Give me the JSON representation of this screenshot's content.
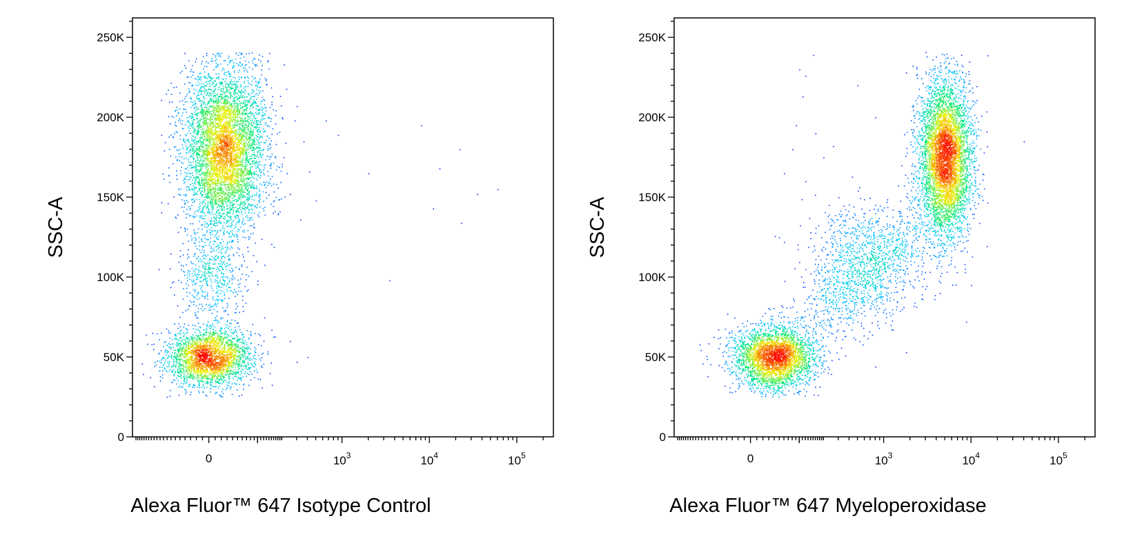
{
  "chart_data": [
    {
      "type": "scatter",
      "xlabel": "Alexa Fluor™ 647 Isotype Control",
      "ylabel": "SSC-A",
      "xscale": "biexponential",
      "ylim": [
        0,
        262144
      ],
      "y_ticks": [
        {
          "value": 0,
          "label": "0"
        },
        {
          "value": 50000,
          "label": "50K"
        },
        {
          "value": 100000,
          "label": "100K"
        },
        {
          "value": 150000,
          "label": "150K"
        },
        {
          "value": 200000,
          "label": "200K"
        },
        {
          "value": 250000,
          "label": "250K"
        }
      ],
      "x_ticks": [
        {
          "value": 0,
          "base": "0",
          "exp": ""
        },
        {
          "value": 1000,
          "base": "10",
          "exp": "3"
        },
        {
          "value": 10000,
          "base": "10",
          "exp": "4"
        },
        {
          "value": 100000,
          "base": "10",
          "exp": "5"
        }
      ],
      "color_scale": [
        "#0000ff",
        "#00c8ff",
        "#00ff80",
        "#ffff00",
        "#ff0000"
      ],
      "clusters": [
        {
          "x_center": 0,
          "y_center": 50000,
          "x_spread": 35,
          "y_spread": 9000,
          "count": 2600,
          "peak_density": "high"
        },
        {
          "x_center": 25,
          "y_center": 180000,
          "x_spread": 40,
          "y_spread": 26000,
          "count": 5200,
          "peak_density": "medium"
        },
        {
          "x_center": 5,
          "y_center": 100000,
          "x_spread": 30,
          "y_spread": 15000,
          "count": 500,
          "peak_density": "low"
        }
      ],
      "outliers": [
        {
          "x": 200,
          "y": 200000
        },
        {
          "x": 300,
          "y": 207000
        },
        {
          "x": 650,
          "y": 198000
        },
        {
          "x": 900,
          "y": 189000
        },
        {
          "x": 2000,
          "y": 165000
        },
        {
          "x": 8000,
          "y": 195000
        },
        {
          "x": 13000,
          "y": 168000
        },
        {
          "x": 22000,
          "y": 180000
        },
        {
          "x": 35000,
          "y": 152000
        },
        {
          "x": 60000,
          "y": 155000
        },
        {
          "x": 11000,
          "y": 143000
        },
        {
          "x": 23000,
          "y": 134000
        },
        {
          "x": 3500,
          "y": 98000
        },
        {
          "x": 500,
          "y": 148000
        },
        {
          "x": 330,
          "y": 136000
        },
        {
          "x": 250,
          "y": 60000
        },
        {
          "x": 300,
          "y": 47000
        },
        {
          "x": 400,
          "y": 50000
        },
        {
          "x": 150,
          "y": 67000
        },
        {
          "x": 230,
          "y": 165000
        },
        {
          "x": 360,
          "y": 185000
        },
        {
          "x": 420,
          "y": 166000
        },
        {
          "x": 250,
          "y": 152000
        },
        {
          "x": 180,
          "y": 140000
        }
      ]
    },
    {
      "type": "scatter",
      "xlabel": "Alexa Fluor™ 647  Myeloperoxidase",
      "ylabel": "SSC-A",
      "xscale": "biexponential",
      "ylim": [
        0,
        262144
      ],
      "y_ticks": [
        {
          "value": 0,
          "label": "0"
        },
        {
          "value": 50000,
          "label": "50K"
        },
        {
          "value": 100000,
          "label": "100K"
        },
        {
          "value": 150000,
          "label": "150K"
        },
        {
          "value": 200000,
          "label": "200K"
        },
        {
          "value": 250000,
          "label": "250K"
        }
      ],
      "x_ticks": [
        {
          "value": 0,
          "base": "0",
          "exp": ""
        },
        {
          "value": 1000,
          "base": "10",
          "exp": "3"
        },
        {
          "value": 10000,
          "base": "10",
          "exp": "4"
        },
        {
          "value": 100000,
          "base": "10",
          "exp": "5"
        }
      ],
      "color_scale": [
        "#0000ff",
        "#00c8ff",
        "#00ff80",
        "#ffff00",
        "#ff0000"
      ],
      "clusters": [
        {
          "x_center": 40,
          "y_center": 50000,
          "x_spread": 45,
          "y_spread": 10000,
          "count": 3200,
          "peak_density": "high"
        },
        {
          "x_center": 5000,
          "y_center": 175000,
          "x_spread": 2000,
          "y_spread": 25000,
          "count": 5000,
          "peak_density": "high"
        },
        {
          "x_center": 600,
          "y_center": 110000,
          "x_spread": 600,
          "y_spread": 18000,
          "count": 900,
          "peak_density": "low"
        }
      ],
      "outliers": [
        {
          "x": 150,
          "y": 239000
        },
        {
          "x": 120,
          "y": 226000
        },
        {
          "x": 100,
          "y": 230000
        },
        {
          "x": 110,
          "y": 213000
        },
        {
          "x": 90,
          "y": 195000
        },
        {
          "x": 80,
          "y": 180000
        },
        {
          "x": 160,
          "y": 190000
        },
        {
          "x": 200,
          "y": 175000
        },
        {
          "x": 260,
          "y": 182000
        },
        {
          "x": 60,
          "y": 165000
        },
        {
          "x": 120,
          "y": 160000
        },
        {
          "x": 300,
          "y": 150000
        },
        {
          "x": 500,
          "y": 220000
        },
        {
          "x": 800,
          "y": 200000
        },
        {
          "x": 1800,
          "y": 228000
        },
        {
          "x": 40000,
          "y": 185000
        },
        {
          "x": 1200,
          "y": 70000
        },
        {
          "x": 1800,
          "y": 53000
        },
        {
          "x": 2200,
          "y": 82000
        },
        {
          "x": 800,
          "y": 44000
        },
        {
          "x": 10000,
          "y": 95000
        },
        {
          "x": 250,
          "y": 48000
        },
        {
          "x": 60,
          "y": 122000
        }
      ]
    }
  ]
}
